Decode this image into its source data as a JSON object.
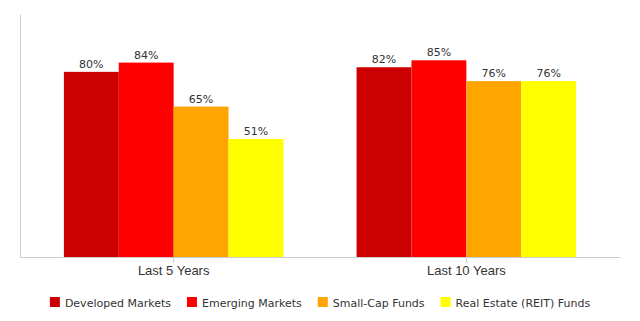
{
  "chart_data": {
    "type": "bar",
    "categories": [
      "Last 5 Years",
      "Last 10 Years"
    ],
    "series": [
      {
        "name": "Developed Markets",
        "color": "#cc0000",
        "values": [
          80,
          82
        ],
        "value_labels": [
          "80%",
          "82%"
        ]
      },
      {
        "name": "Emerging Markets",
        "color": "#ff0000",
        "values": [
          84,
          85
        ],
        "value_labels": [
          "84%",
          "85%"
        ]
      },
      {
        "name": "Small-Cap Funds",
        "color": "#ffa500",
        "values": [
          65,
          76
        ],
        "value_labels": [
          "65%",
          "76%"
        ]
      },
      {
        "name": "Real Estate (REIT) Funds",
        "color": "#ffff00",
        "values": [
          51,
          76
        ],
        "value_labels": [
          "51%",
          "76%"
        ]
      }
    ],
    "ylim": [
      0,
      105
    ],
    "data_labels": true,
    "tick_labels": "x",
    "legend": "bottom",
    "grid": false
  }
}
